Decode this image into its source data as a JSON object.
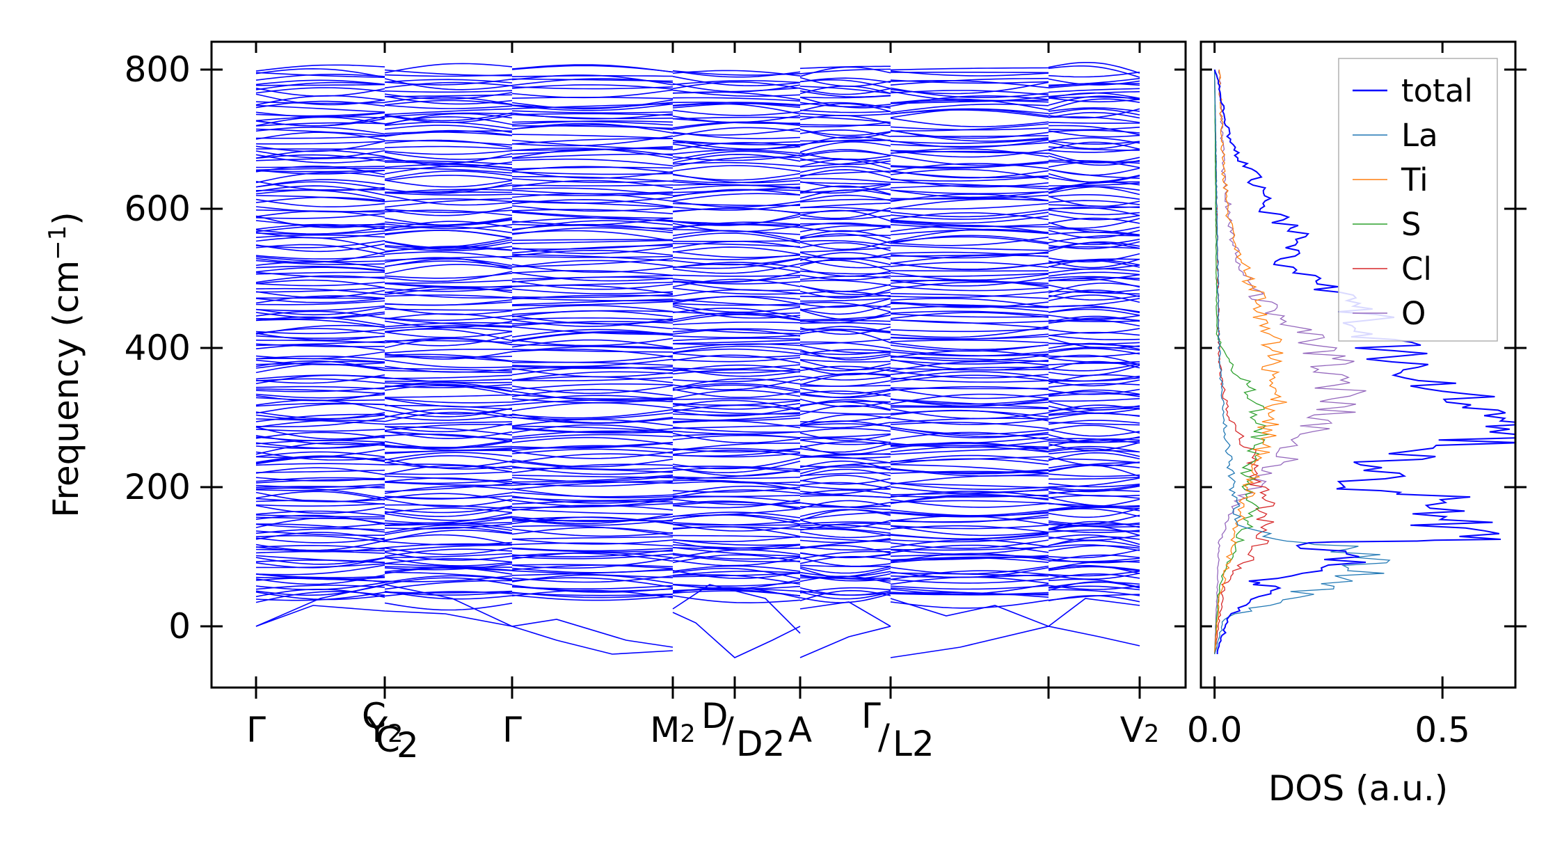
{
  "chart_data": [
    {
      "type": "line",
      "chart_kind": "phonon band structure",
      "ylabel_text": "Frequency (cm",
      "ylabel_sup": "−1",
      "ylabel_close": ")",
      "ylim": [
        -88,
        840
      ],
      "yticks": [
        0,
        200,
        400,
        600,
        800
      ],
      "kpoint_labels": [
        {
          "text": "Γ",
          "sub": "",
          "pre_sup": ""
        },
        {
          "text": "Y",
          "sub": "2",
          "pre_sup": ""
        },
        {
          "text": "Γ",
          "sub": "",
          "pre_sup": ""
        },
        {
          "text": "M",
          "sub": "2",
          "pre_sup": ""
        },
        {
          "text": "A",
          "sub": "",
          "pre_sup": ""
        },
        {
          "text": "Γ",
          "sub": "",
          "pre_sup": ""
        },
        {
          "text": "V",
          "sub": "2",
          "pre_sup": ""
        }
      ],
      "overlay_labels": [
        {
          "text": "C",
          "sub": "2",
          "pre_sup": "C"
        },
        {
          "text": "D",
          "sub": "2",
          "pre_sup": "D"
        },
        {
          "text": "L",
          "sub": "2",
          "pre_sup": "Γ"
        }
      ],
      "segments": [
        {
          "from": "Γ",
          "to": "Y2"
        },
        {
          "from": "C2",
          "to": "Γ"
        },
        {
          "from": "Γ",
          "to": "M2"
        },
        {
          "from": "D",
          "to": "D2"
        },
        {
          "from": "D2",
          "to": "A"
        },
        {
          "from": "Γ",
          "to": "L2"
        },
        {
          "from": "L2",
          "to": "Γ"
        },
        {
          "from": "Γ",
          "to": "V2"
        }
      ],
      "n_branches": 192,
      "frequency_range": [
        -45,
        800
      ],
      "line_color": "#0000ff",
      "grid": false
    },
    {
      "type": "line",
      "chart_kind": "phonon density of states",
      "xlabel": "DOS (a.u.)",
      "xticks": [
        "0.0",
        "0.5"
      ],
      "xlim": [
        -0.03,
        0.66
      ],
      "ylim": [
        -88,
        840
      ],
      "legend_position": "top-right",
      "grid": false,
      "series": [
        {
          "name": "total",
          "color": "#0000ff",
          "x": [
            0.005,
            0.03,
            0.12,
            0.08,
            0.3,
            0.28,
            0.18,
            0.56,
            0.46,
            0.3,
            0.4,
            0.62,
            0.53,
            0.42,
            0.35,
            0.33,
            0.14,
            0.18,
            0.12,
            0.1,
            0.03,
            0.01,
            0.0
          ],
          "y": [
            -40,
            10,
            55,
            65,
            80,
            100,
            120,
            125,
            190,
            200,
            240,
            260,
            330,
            380,
            420,
            460,
            520,
            560,
            600,
            630,
            700,
            780,
            800
          ]
        },
        {
          "name": "La",
          "color": "#1f77b4",
          "x": [
            0.0,
            0.02,
            0.2,
            0.3,
            0.33,
            0.26,
            0.14,
            0.05,
            0.04,
            0.02,
            0.01,
            0.0
          ],
          "y": [
            -40,
            10,
            50,
            65,
            95,
            115,
            125,
            150,
            200,
            300,
            400,
            800
          ]
        },
        {
          "name": "Ti",
          "color": "#ff7f0e",
          "x": [
            0.0,
            0.01,
            0.04,
            0.06,
            0.1,
            0.14,
            0.12,
            0.09,
            0.04,
            0.02,
            0.01
          ],
          "y": [
            -40,
            40,
            120,
            160,
            250,
            330,
            420,
            480,
            550,
            650,
            800
          ]
        },
        {
          "name": "S",
          "color": "#2ca02c",
          "x": [
            0.0,
            0.01,
            0.05,
            0.09,
            0.07,
            0.1,
            0.08,
            0.03,
            0.005,
            0.0
          ],
          "y": [
            -40,
            60,
            120,
            170,
            220,
            280,
            340,
            380,
            420,
            800
          ]
        },
        {
          "name": "Cl",
          "color": "#d62728",
          "x": [
            0.0,
            0.02,
            0.1,
            0.12,
            0.1,
            0.08,
            0.03,
            0.01,
            0.0
          ],
          "y": [
            -40,
            60,
            115,
            150,
            200,
            250,
            300,
            380,
            800
          ]
        },
        {
          "name": "O",
          "color": "#9467bd",
          "x": [
            0.0,
            0.01,
            0.05,
            0.12,
            0.18,
            0.25,
            0.28,
            0.24,
            0.17,
            0.1,
            0.05,
            0.02,
            0.01
          ],
          "y": [
            -40,
            120,
            180,
            220,
            260,
            300,
            350,
            400,
            430,
            470,
            520,
            650,
            800
          ]
        }
      ]
    }
  ]
}
